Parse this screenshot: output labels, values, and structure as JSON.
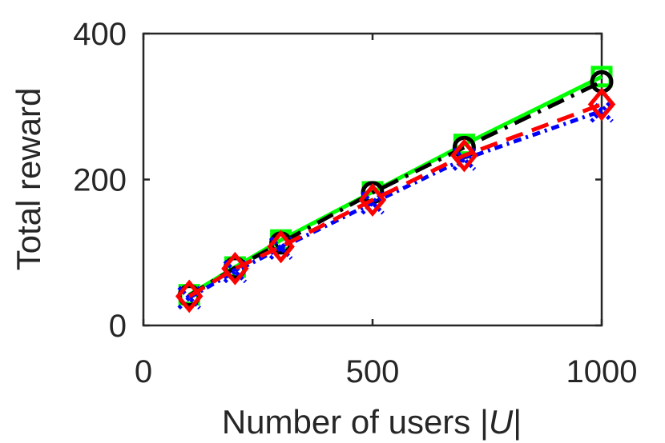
{
  "chart_data": {
    "type": "line",
    "title": "",
    "xlabel": "Number of users |U|",
    "xlabel_parts": {
      "before": "Number of users |",
      "italic": "U",
      "after": "|"
    },
    "ylabel": "Total reward",
    "xlim": [
      0,
      1000
    ],
    "ylim": [
      0,
      400
    ],
    "x_ticks": [
      0,
      500,
      1000
    ],
    "y_ticks": [
      0,
      200,
      400
    ],
    "grid": false,
    "legend": "none",
    "x": [
      100,
      200,
      300,
      500,
      700,
      1000
    ],
    "series": [
      {
        "color": "#00ff00",
        "line_style": "solid",
        "marker": "square",
        "values": [
          42,
          80,
          117,
          183,
          248,
          341
        ]
      },
      {
        "color": "#000000",
        "line_style": "dashdot",
        "marker": "circle",
        "values": [
          41,
          79,
          113,
          182,
          244,
          334
        ]
      },
      {
        "color": "#0000ff",
        "line_style": "dashdot-dense",
        "marker": "x",
        "values": [
          38,
          74,
          106,
          168,
          228,
          294
        ]
      },
      {
        "color": "#ff0000",
        "line_style": "dashed",
        "marker": "diamond",
        "values": [
          40,
          78,
          108,
          172,
          233,
          303
        ]
      }
    ]
  }
}
